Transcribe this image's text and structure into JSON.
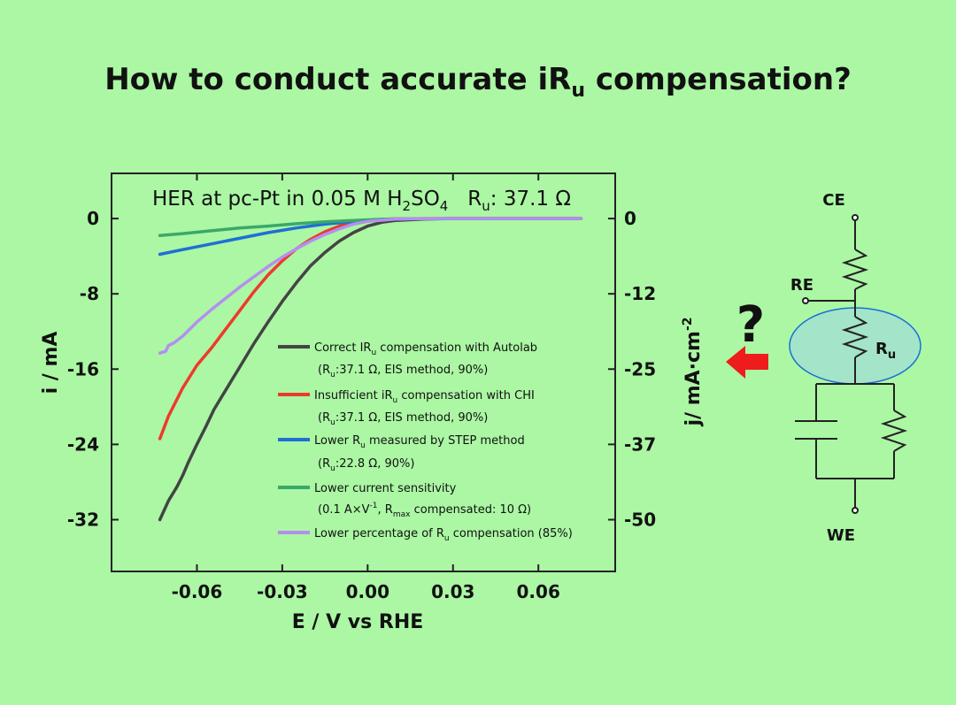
{
  "title": {
    "main": "How to conduct accurate iR",
    "sub": "u",
    "end": " compensation?"
  },
  "chart_data": {
    "type": "line",
    "title": {
      "p1": "HER at pc-Pt in 0.05 M H",
      "s1": "2",
      "p2": "SO",
      "s2": "4",
      "p3": "   R",
      "s3": "u",
      "p4": ": 37.1 Ω"
    },
    "xlabel": "E / V vs RHE",
    "ylabel": "i / mA",
    "y2label": {
      "main": "j/ mA·cm",
      "sup": "-2"
    },
    "xlim": [
      -0.09,
      0.087
    ],
    "ylim": [
      -37.5,
      4.8
    ],
    "x_ticks": [
      -0.06,
      -0.03,
      0.0,
      0.03,
      0.06
    ],
    "x_tick_labels": [
      "-0.06",
      "-0.03",
      "0.00",
      "0.03",
      "0.06"
    ],
    "y_ticks": [
      0,
      -8,
      -16,
      -24,
      -32
    ],
    "y_tick_labels": [
      "0",
      "-8",
      "-16",
      "-24",
      "-32"
    ],
    "y2_ticks": [
      0,
      -8,
      -16,
      -24,
      -32
    ],
    "y2_tick_labels": [
      "0",
      "-12",
      "-25",
      "-37",
      "-50"
    ],
    "series": [
      {
        "name": "Correct IR",
        "name_sub": "u",
        "name_end": " compensation with Autolab",
        "detail": {
          "a": "(R",
          "sub": "u",
          "b": ":37.1 Ω, EIS method, 90%)"
        },
        "color": "#444444",
        "x": [
          -0.073,
          -0.07,
          -0.067,
          -0.065,
          -0.063,
          -0.06,
          -0.057,
          -0.054,
          -0.05,
          -0.045,
          -0.04,
          -0.035,
          -0.03,
          -0.025,
          -0.02,
          -0.015,
          -0.01,
          -0.005,
          0.0,
          0.005,
          0.01,
          0.02,
          0.03,
          0.04,
          0.05,
          0.06,
          0.07,
          0.075
        ],
        "y": [
          -32.0,
          -30.0,
          -28.5,
          -27.3,
          -25.9,
          -24.0,
          -22.2,
          -20.3,
          -18.3,
          -15.8,
          -13.3,
          -11.0,
          -8.8,
          -6.8,
          -5.0,
          -3.6,
          -2.4,
          -1.5,
          -0.8,
          -0.4,
          -0.2,
          -0.05,
          0.0,
          0.0,
          0.0,
          0.0,
          0.0,
          0.0
        ]
      },
      {
        "name": "Insufficient iR",
        "name_sub": "u",
        "name_end": " compensation with CHI",
        "detail": {
          "a": "(R",
          "sub": "u",
          "b": ":37.1 Ω, EIS method, 90%)"
        },
        "color": "#ee3a2c",
        "x": [
          -0.073,
          -0.07,
          -0.065,
          -0.06,
          -0.055,
          -0.05,
          -0.045,
          -0.04,
          -0.035,
          -0.03,
          -0.025,
          -0.02,
          -0.015,
          -0.01,
          -0.005,
          0.0,
          0.005,
          0.01,
          0.02,
          0.03,
          0.04,
          0.05,
          0.06,
          0.07,
          0.075
        ],
        "y": [
          -23.4,
          -21.0,
          -18.0,
          -15.6,
          -13.8,
          -11.8,
          -9.8,
          -7.8,
          -6.0,
          -4.5,
          -3.2,
          -2.2,
          -1.4,
          -0.8,
          -0.4,
          -0.2,
          -0.08,
          -0.03,
          0.0,
          0.0,
          0.0,
          0.0,
          0.0,
          0.0,
          0.0
        ]
      },
      {
        "name": "Lower R",
        "name_sub": "u",
        "name_end": " measured by STEP method",
        "detail": {
          "a": "(R",
          "sub": "u",
          "b": ":22.8 Ω, 90%)"
        },
        "color": "#1f6fd6",
        "x": [
          -0.073,
          -0.065,
          -0.055,
          -0.045,
          -0.035,
          -0.025,
          -0.015,
          -0.005,
          0.005,
          0.015,
          0.03,
          0.045,
          0.06,
          0.075
        ],
        "y": [
          -3.8,
          -3.3,
          -2.7,
          -2.1,
          -1.5,
          -1.0,
          -0.6,
          -0.3,
          -0.1,
          -0.03,
          0.0,
          0.0,
          0.0,
          0.0
        ]
      },
      {
        "name": "Lower current sensitivity",
        "detail": {
          "a": "(0.1 A×V",
          "sup": "-1",
          "b": ", R",
          "sub": "max",
          "c": " compensated: 10 Ω)"
        },
        "color": "#3aa86a",
        "x": [
          -0.073,
          -0.065,
          -0.055,
          -0.045,
          -0.035,
          -0.025,
          -0.015,
          -0.005,
          0.005,
          0.015,
          0.03,
          0.045,
          0.06,
          0.075
        ],
        "y": [
          -1.8,
          -1.6,
          -1.3,
          -1.0,
          -0.8,
          -0.55,
          -0.35,
          -0.2,
          -0.08,
          -0.02,
          0.0,
          0.0,
          0.0,
          0.0
        ]
      },
      {
        "name": "Lower percentage of R",
        "name_sub": "u",
        "name_end": " compensation (85%)",
        "color": "#b48ff0",
        "x": [
          -0.073,
          -0.071,
          -0.07,
          -0.068,
          -0.065,
          -0.06,
          -0.055,
          -0.05,
          -0.045,
          -0.04,
          -0.035,
          -0.03,
          -0.025,
          -0.02,
          -0.015,
          -0.01,
          -0.005,
          0.0,
          0.01,
          0.02,
          0.03,
          0.045,
          0.06,
          0.075
        ],
        "y": [
          -14.3,
          -14.1,
          -13.5,
          -13.2,
          -12.5,
          -11.0,
          -9.7,
          -8.5,
          -7.3,
          -6.2,
          -5.1,
          -4.1,
          -3.2,
          -2.4,
          -1.7,
          -1.1,
          -0.6,
          -0.3,
          -0.05,
          0.0,
          0.0,
          0.0,
          0.0,
          0.0
        ]
      }
    ],
    "legend_position": "center-right",
    "grid": false
  },
  "circuit": {
    "labels": {
      "ce": "CE",
      "re": "RE",
      "we": "WE",
      "ru": "R",
      "ru_sub": "u"
    },
    "question_mark": "?",
    "colors": {
      "arrow": "#ee1c1c",
      "ellipse_fill": "#9ed2ee",
      "ellipse_stroke": "#1a6fd6",
      "wire": "#222222"
    }
  }
}
